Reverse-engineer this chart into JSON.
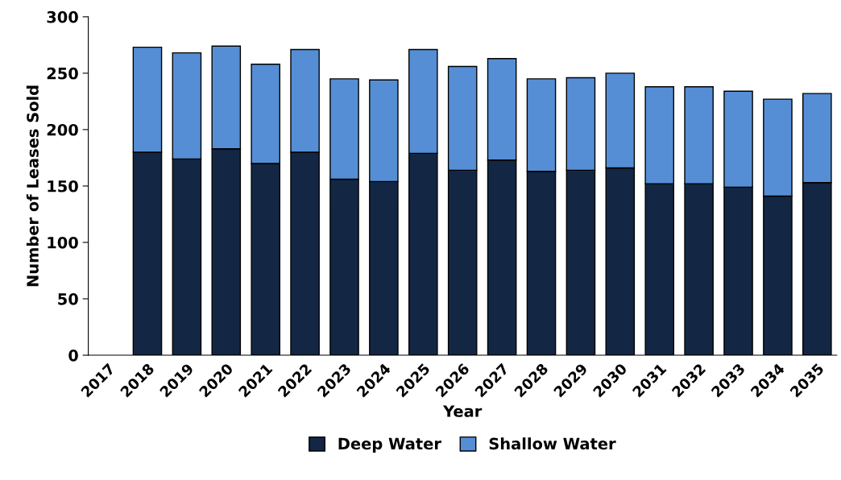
{
  "chart_data": {
    "type": "bar",
    "stacked": true,
    "xlabel": "Year",
    "ylabel": "Number of Leases Sold",
    "categories": [
      "2017",
      "2018",
      "2019",
      "2020",
      "2021",
      "2022",
      "2023",
      "2024",
      "2025",
      "2026",
      "2027",
      "2028",
      "2029",
      "2030",
      "2031",
      "2032",
      "2033",
      "2034",
      "2035"
    ],
    "series": [
      {
        "name": "Deep Water",
        "color": "#132744",
        "values": [
          null,
          180,
          174,
          183,
          170,
          180,
          156,
          154,
          179,
          164,
          173,
          163,
          164,
          166,
          152,
          152,
          149,
          141,
          153
        ]
      },
      {
        "name": "Shallow Water",
        "color": "#558ed5",
        "values": [
          null,
          93,
          94,
          91,
          88,
          91,
          89,
          90,
          92,
          92,
          90,
          82,
          82,
          84,
          86,
          86,
          85,
          86,
          79
        ]
      }
    ],
    "ylim": [
      0,
      300
    ],
    "yticks": [
      0,
      50,
      100,
      150,
      200,
      250,
      300
    ],
    "grid": false,
    "legend": "bottom"
  }
}
